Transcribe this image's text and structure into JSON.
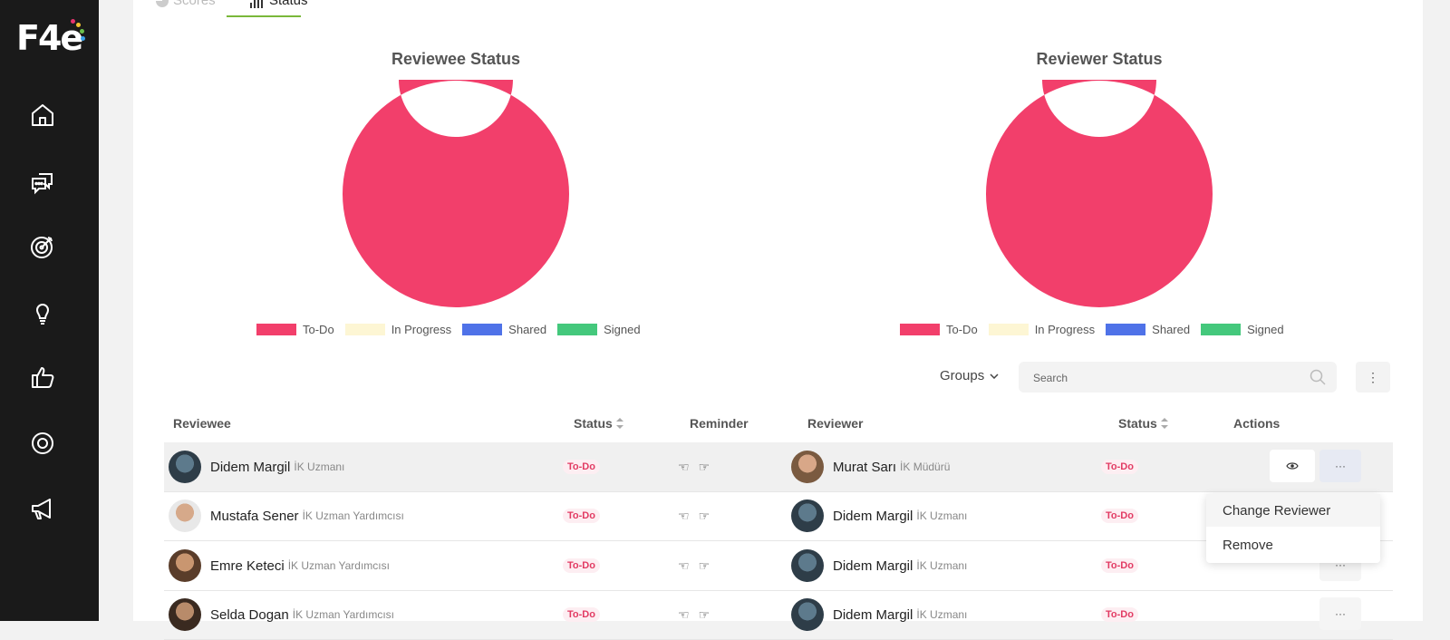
{
  "app": {
    "logo_text": "F4e",
    "logo_dot_colors": [
      "#e6336d",
      "#f4c430",
      "#3aa0e8",
      "#6bc04b"
    ]
  },
  "sidebar": {
    "items": [
      {
        "name": "home-icon"
      },
      {
        "name": "chat-icon"
      },
      {
        "name": "target-icon"
      },
      {
        "name": "lightbulb-icon"
      },
      {
        "name": "thumbs-up-icon"
      },
      {
        "name": "settings-icon"
      },
      {
        "name": "megaphone-icon"
      }
    ]
  },
  "tabs": [
    {
      "label": "Scores",
      "icon": "pie-chart-icon",
      "active": false
    },
    {
      "label": "Status",
      "icon": "bar-chart-icon",
      "active": true
    }
  ],
  "chart_data": [
    {
      "type": "pie",
      "title": "Reviewee Status",
      "categories": [
        "To-Do",
        "In Progress",
        "Shared",
        "Signed"
      ],
      "values": [
        100,
        0,
        0,
        0
      ],
      "colors": [
        "#f23f6b",
        "#fdf6d4",
        "#4f72e8",
        "#44c87c"
      ],
      "legend": "bottom"
    },
    {
      "type": "pie",
      "title": "Reviewer Status",
      "categories": [
        "To-Do",
        "In Progress",
        "Shared",
        "Signed"
      ],
      "values": [
        100,
        0,
        0,
        0
      ],
      "colors": [
        "#f23f6b",
        "#fdf6d4",
        "#4f72e8",
        "#44c87c"
      ],
      "legend": "bottom"
    }
  ],
  "toolbar": {
    "groups_label": "Groups",
    "search_placeholder": "Search"
  },
  "table": {
    "headers": {
      "reviewee": "Reviewee",
      "status": "Status",
      "reminder": "Reminder",
      "reviewer": "Reviewer",
      "reviewer_status": "Status",
      "actions": "Actions"
    },
    "rows": [
      {
        "reviewee": {
          "name": "Didem Margil",
          "title": "İK Uzmanı"
        },
        "status": "To-Do",
        "reviewer": {
          "name": "Murat Sarı",
          "title": "İK Müdürü"
        },
        "reviewer_status": "To-Do"
      },
      {
        "reviewee": {
          "name": "Mustafa Sener",
          "title": "İK Uzman Yardımcısı"
        },
        "status": "To-Do",
        "reviewer": {
          "name": "Didem Margil",
          "title": "İK Uzmanı"
        },
        "reviewer_status": "To-Do"
      },
      {
        "reviewee": {
          "name": "Emre Keteci",
          "title": "İK Uzman Yardımcısı"
        },
        "status": "To-Do",
        "reviewer": {
          "name": "Didem Margil",
          "title": "İK Uzmanı"
        },
        "reviewer_status": "To-Do"
      },
      {
        "reviewee": {
          "name": "Selda Dogan",
          "title": "İK Uzman Yardımcısı"
        },
        "status": "To-Do",
        "reviewer": {
          "name": "Didem Margil",
          "title": "İK Uzmanı"
        },
        "reviewer_status": "To-Do"
      }
    ]
  },
  "dropdown": {
    "items": [
      "Change Reviewer",
      "Remove"
    ]
  },
  "colors": {
    "accent": "#7ab83a",
    "todo": "#f23f6b",
    "sidebar_bg": "#1a1a1a"
  }
}
